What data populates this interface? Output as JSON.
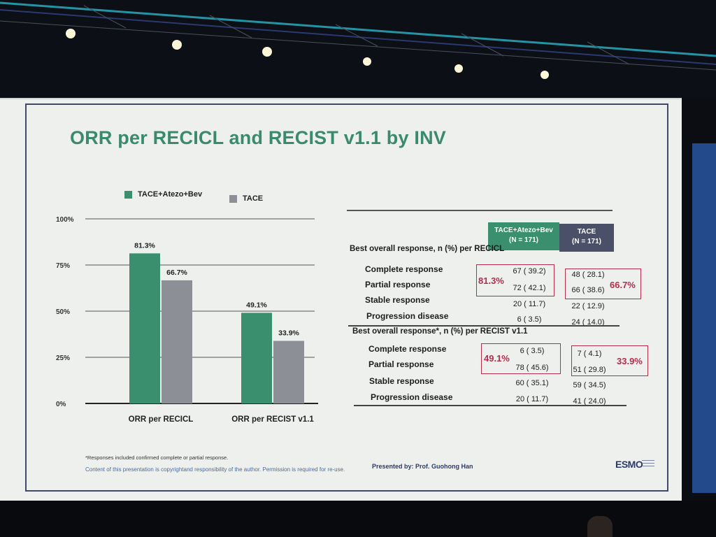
{
  "title": "ORR per RECICL and RECIST v1.1 by INV",
  "legend": {
    "series_1": "TACE+Atezo+Bev",
    "series_2": "TACE"
  },
  "colors": {
    "series_1": "#3a8f6f",
    "series_2": "#8d8f96",
    "tace_header": "#4a5068",
    "highlight": "#b32e4a"
  },
  "chart_data": {
    "type": "bar",
    "categories": [
      "ORR per RECICL",
      "ORR per RECIST v1.1"
    ],
    "series": [
      {
        "name": "TACE+Atezo+Bev",
        "values": [
          81.3,
          49.1
        ],
        "labels": [
          "81.3%",
          "49.1%"
        ]
      },
      {
        "name": "TACE",
        "values": [
          66.7,
          33.9
        ],
        "labels": [
          "66.7%",
          "33.9%"
        ]
      }
    ],
    "yticks": [
      "100%",
      "75%",
      "50%",
      "25%",
      "0%"
    ],
    "ylim": [
      0,
      100
    ],
    "grid": true
  },
  "table": {
    "col1_header": [
      "TACE+Atezo+Bev",
      "(N = 171)"
    ],
    "col2_header": [
      "TACE",
      "(N = 171)"
    ],
    "section1": {
      "title": "Best overall response, n (%) per RECICL",
      "rows": [
        {
          "label": "Complete response",
          "v1": "67 ( 39.2)",
          "v2": "48 ( 28.1)"
        },
        {
          "label": "Partial response",
          "v1": "72 ( 42.1)",
          "v2": "66 ( 38.6)"
        },
        {
          "label": "Stable response",
          "v1": "20 ( 11.7)",
          "v2": "22 ( 12.9)"
        },
        {
          "label": "Progression disease",
          "v1": "6 ( 3.5)",
          "v2": "24 ( 14.0)"
        }
      ],
      "orr1": "81.3%",
      "orr2": "66.7%"
    },
    "section2": {
      "title": "Best overall response*, n (%) per RECIST v1.1",
      "rows": [
        {
          "label": "Complete response",
          "v1": "6 ( 3.5)",
          "v2": "7 ( 4.1)"
        },
        {
          "label": "Partial response",
          "v1": "78 ( 45.6)",
          "v2": "51 ( 29.8)"
        },
        {
          "label": "Stable response",
          "v1": "60 ( 35.1)",
          "v2": "59 ( 34.5)"
        },
        {
          "label": "Progression disease",
          "v1": "20 ( 11.7)",
          "v2": "41 ( 24.0)"
        }
      ],
      "orr1": "49.1%",
      "orr2": "33.9%"
    }
  },
  "footnote": "*Responses included confirmed complete or partial response.",
  "copyright": "Content of this presentation is copyrightand responsibility of the author. Permission is required for re-use.",
  "presenter": "Presented by: Prof. Guohong Han",
  "logo": "ESMO"
}
